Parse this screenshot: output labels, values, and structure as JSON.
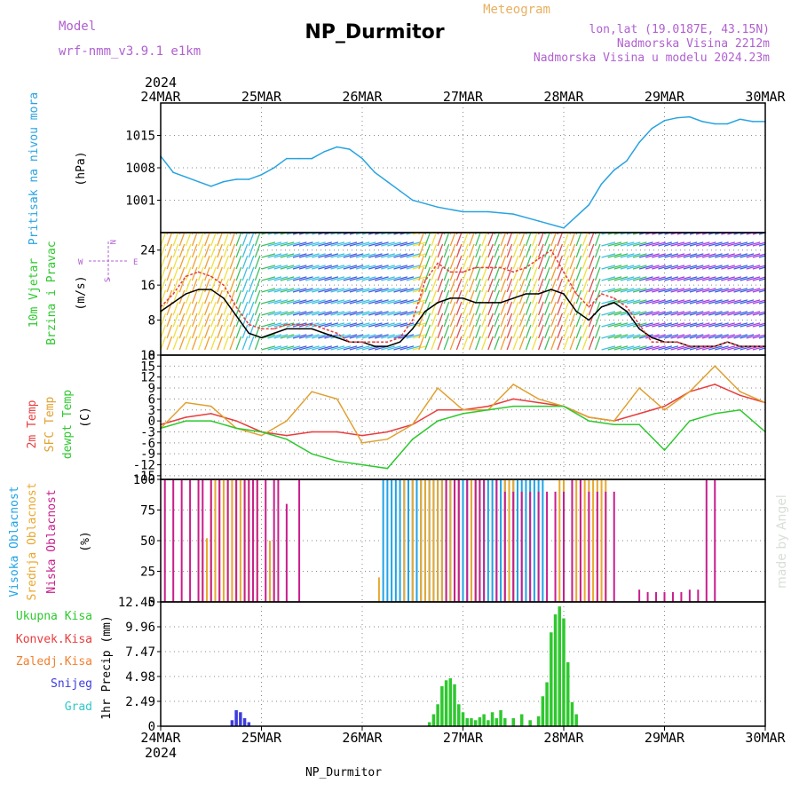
{
  "header": {
    "model_label": "Model",
    "model_name": "wrf-nmm_v3.9.1  e1km",
    "title": "NP_Durmitor",
    "meteogram_label": "Meteogram",
    "location_line1": "lon,lat (19.0187E, 43.15N)",
    "location_line2": "Nadmorska Visina 2212m",
    "location_line3": "Nadmorska Visina u modelu 2024.23m"
  },
  "time_axis": {
    "year": "2024",
    "labels": [
      "24MAR",
      "25MAR",
      "26MAR",
      "27MAR",
      "28MAR",
      "29MAR",
      "30MAR"
    ]
  },
  "footer_label": "NP_Durmitor",
  "watermark": "made by Angel",
  "colors": {
    "pressure": "#29a3e0",
    "wind_speed": "#000000",
    "temp2m": "#e83c3c",
    "sfc_temp": "#e0a030",
    "dewpt": "#2ec82e",
    "high_cloud": "#1fa2e6",
    "mid_cloud": "#e8a830",
    "low_cloud": "#c81e8c",
    "total_precip": "#2ec82e",
    "conv_precip": "#e83c3c",
    "frozen_precip": "#f08030",
    "snow": "#3c3cdc",
    "hail": "#30c8c8"
  },
  "chart_data": [
    {
      "type": "line",
      "panel": "pressure",
      "ylabel_main": "Pritisak na nivou mora",
      "ylabel_unit": "(hPa)",
      "ylim": [
        994,
        1022
      ],
      "yticks": [
        1001,
        1008,
        1015
      ],
      "xlim": [
        0,
        144
      ],
      "series": [
        {
          "x": [
            0,
            3,
            6,
            9,
            12,
            15,
            18,
            21,
            24,
            27,
            30,
            33,
            36,
            39,
            42,
            45,
            48,
            51,
            54,
            57,
            60,
            66,
            72,
            78,
            84,
            90,
            96,
            102,
            105,
            108,
            111,
            114,
            117,
            120,
            123,
            126,
            129,
            132,
            135,
            138,
            141,
            144
          ],
          "values": [
            1010.5,
            1007,
            1006,
            1005,
            1004,
            1005,
            1005.5,
            1005.5,
            1006.5,
            1008,
            1010,
            1010,
            1010,
            1011.5,
            1012.5,
            1012,
            1010,
            1007,
            1005,
            1003,
            1001,
            999.5,
            998.5,
            998.5,
            998,
            996.5,
            995,
            1000,
            1004.5,
            1007.5,
            1009.5,
            1013.5,
            1016.5,
            1018.2,
            1018.8,
            1019,
            1018,
            1017.5,
            1017.5,
            1018.5,
            1018,
            1018
          ]
        }
      ]
    },
    {
      "type": "line",
      "panel": "wind",
      "ylabel_main": "10m Vjetar",
      "ylabel_sub": "Brzina i Pravac",
      "ylabel_unit": "(m/s)",
      "compass": [
        "N",
        "S",
        "W",
        "E"
      ],
      "ylim": [
        0,
        28
      ],
      "yticks": [
        0,
        8,
        16,
        24
      ],
      "xlim": [
        0,
        144
      ],
      "series": [
        {
          "name": "speed",
          "x": [
            0,
            3,
            6,
            9,
            12,
            15,
            18,
            21,
            24,
            27,
            30,
            33,
            36,
            39,
            42,
            45,
            48,
            51,
            54,
            57,
            60,
            63,
            66,
            69,
            72,
            75,
            78,
            81,
            84,
            87,
            90,
            93,
            96,
            99,
            102,
            105,
            108,
            111,
            114,
            117,
            120,
            123,
            126,
            129,
            132,
            135,
            138,
            141,
            144
          ],
          "values": [
            10,
            12,
            14,
            15,
            15,
            13,
            9,
            5,
            4,
            5,
            6,
            6,
            6,
            5,
            4,
            3,
            3,
            2,
            2,
            3,
            6,
            10,
            12,
            13,
            13,
            12,
            12,
            12,
            13,
            14,
            14,
            15,
            14,
            10,
            8,
            11,
            12,
            10,
            6,
            4,
            3,
            3,
            2,
            2,
            2,
            3,
            2,
            2,
            2
          ]
        },
        {
          "name": "gust",
          "x": [
            0,
            3,
            6,
            9,
            12,
            15,
            18,
            21,
            24,
            27,
            30,
            33,
            36,
            39,
            42,
            45,
            48,
            51,
            54,
            57,
            60,
            63,
            66,
            69,
            72,
            75,
            78,
            81,
            84,
            87,
            90,
            93,
            96,
            99,
            102,
            105,
            108,
            111,
            114,
            117,
            120,
            123,
            126,
            129,
            132,
            135,
            138,
            141,
            144
          ],
          "values": [
            11,
            14,
            18,
            19,
            18,
            16,
            11,
            7,
            6,
            6,
            7,
            7,
            7,
            6,
            5,
            3,
            3,
            3,
            3,
            4,
            8,
            17,
            21,
            19,
            19,
            20,
            20,
            20,
            19,
            20,
            22,
            24,
            19,
            14,
            11,
            14,
            13,
            11,
            7,
            3,
            3,
            3,
            2,
            2,
            2,
            3,
            2,
            2,
            2
          ]
        }
      ]
    },
    {
      "type": "line",
      "panel": "temperature",
      "ylabel": "2m Temp",
      "ylabel2": "SFC Temp",
      "ylabel3": "dewpt Temp",
      "ylabel_unit": "(C)",
      "ylim": [
        -16,
        18
      ],
      "yticks": [
        -15,
        -12,
        -9,
        -6,
        -3,
        0,
        3,
        6,
        9,
        12,
        15,
        18
      ],
      "ytick_labels": [
        "-15",
        "-12",
        "-9",
        "-6",
        "-3",
        "0",
        "3",
        "6",
        "9",
        "12",
        "15",
        "18"
      ],
      "xlim": [
        0,
        144
      ],
      "series": [
        {
          "name": "2m Temp",
          "x": [
            0,
            6,
            12,
            18,
            24,
            30,
            36,
            42,
            48,
            54,
            60,
            66,
            72,
            78,
            84,
            90,
            96,
            102,
            108,
            114,
            120,
            126,
            132,
            138,
            144
          ],
          "values": [
            -1,
            1,
            2,
            0,
            -3,
            -4,
            -3,
            -3,
            -4,
            -3,
            -1,
            3,
            3,
            4,
            6,
            5,
            4,
            1,
            0,
            2,
            4,
            8,
            10,
            7,
            5
          ]
        },
        {
          "name": "SFC Temp",
          "x": [
            0,
            6,
            12,
            18,
            24,
            30,
            36,
            42,
            48,
            54,
            60,
            66,
            72,
            78,
            84,
            90,
            96,
            102,
            108,
            114,
            120,
            126,
            132,
            138,
            144
          ],
          "values": [
            -2,
            5,
            4,
            -2,
            -4,
            0,
            8,
            6,
            -6,
            -5,
            -1,
            9,
            3,
            3,
            10,
            6,
            4,
            1,
            0,
            9,
            3,
            8,
            15,
            8,
            5
          ]
        },
        {
          "name": "dewpt Temp",
          "x": [
            0,
            6,
            12,
            18,
            24,
            30,
            36,
            42,
            48,
            54,
            60,
            66,
            72,
            78,
            84,
            90,
            96,
            102,
            108,
            114,
            120,
            126,
            132,
            138,
            144
          ],
          "values": [
            -2,
            0,
            0,
            -2,
            -3,
            -5,
            -9,
            -11,
            -12,
            -13,
            -5,
            0,
            2,
            3,
            4,
            4,
            4,
            0,
            -1,
            -1,
            -8,
            0,
            2,
            3,
            -3
          ]
        }
      ]
    },
    {
      "type": "bar",
      "panel": "cloud",
      "ylabel": "Visoka Oblacnost",
      "ylabel2": "Srednja Oblacnost",
      "ylabel3": "Niska Oblacnost",
      "ylabel_unit": "(%)",
      "ylim": [
        0,
        100
      ],
      "yticks": [
        0,
        25,
        50,
        75,
        100
      ],
      "xlim": [
        0,
        144
      ],
      "series": [
        {
          "name": "Visoka Oblacnost",
          "x": [
            53,
            54,
            55,
            56,
            57,
            58,
            59,
            60,
            61,
            62,
            63,
            64,
            65,
            66,
            67,
            68,
            69,
            70,
            71,
            72,
            73,
            74,
            75,
            76,
            77,
            78,
            79,
            80,
            81,
            82,
            83,
            84,
            85,
            86,
            87,
            88,
            89,
            90,
            91
          ],
          "values": [
            100,
            100,
            100,
            100,
            100,
            100,
            100,
            100,
            100,
            100,
            100,
            100,
            100,
            100,
            100,
            100,
            100,
            100,
            100,
            100,
            100,
            100,
            100,
            100,
            100,
            100,
            100,
            100,
            100,
            100,
            100,
            100,
            100,
            100,
            100,
            100,
            100,
            100,
            100
          ]
        },
        {
          "name": "Srednja Oblacnost",
          "x": [
            10,
            11,
            12,
            13,
            14,
            15,
            16,
            17,
            18,
            19,
            20,
            21,
            22,
            23,
            26,
            27,
            52,
            58,
            60,
            62,
            63,
            64,
            65,
            66,
            67,
            68,
            69,
            70,
            71,
            74,
            75,
            76,
            82,
            83,
            84,
            95,
            96,
            98,
            99,
            100,
            101,
            102,
            103,
            104,
            105,
            106
          ],
          "values": [
            52,
            52,
            100,
            100,
            100,
            100,
            100,
            100,
            100,
            100,
            100,
            100,
            100,
            100,
            50,
            50,
            20,
            100,
            100,
            100,
            100,
            100,
            100,
            100,
            100,
            100,
            100,
            100,
            100,
            100,
            100,
            100,
            100,
            100,
            100,
            100,
            100,
            100,
            100,
            100,
            100,
            100,
            100,
            100,
            100,
            100
          ]
        },
        {
          "name": "Niska Oblacnost",
          "x": [
            1,
            3,
            5,
            7,
            9,
            10,
            12,
            14,
            16,
            18,
            20,
            21,
            22,
            23,
            25,
            27,
            28,
            30,
            33,
            68,
            70,
            71,
            73,
            75,
            76,
            77,
            80,
            82,
            84,
            86,
            88,
            90,
            92,
            94,
            96,
            98,
            100,
            102,
            104,
            106,
            108,
            114,
            116,
            118,
            120,
            122,
            124,
            126,
            128,
            130,
            132
          ],
          "values": [
            100,
            100,
            100,
            100,
            100,
            100,
            100,
            100,
            100,
            100,
            100,
            100,
            100,
            100,
            100,
            100,
            100,
            80,
            100,
            100,
            100,
            100,
            100,
            100,
            100,
            100,
            100,
            90,
            90,
            90,
            90,
            90,
            90,
            90,
            90,
            100,
            100,
            90,
            90,
            90,
            90,
            10,
            8,
            8,
            8,
            8,
            8,
            10,
            10,
            100,
            100
          ]
        }
      ]
    },
    {
      "type": "bar",
      "panel": "precipitation",
      "ylabel": "1hr Precip (mm)",
      "legend": [
        "Ukupna Kisa",
        "Konvek.Kisa",
        "Zaledj.Kisa",
        "Snijeg",
        "Grad"
      ],
      "ylim": [
        0,
        12.45
      ],
      "yticks": [
        0,
        2.49,
        4.98,
        7.47,
        9.96,
        12.45
      ],
      "ytick_labels": [
        "0",
        "2.49",
        "4.98",
        "7.47",
        "9.96",
        "12.45"
      ],
      "xlim": [
        0,
        144
      ],
      "series": [
        {
          "name": "Ukupna Kisa",
          "x": [
            64,
            65,
            66,
            67,
            68,
            69,
            70,
            71,
            72,
            73,
            74,
            75,
            76,
            77,
            78,
            79,
            80,
            81,
            82,
            84,
            86,
            88,
            90,
            91,
            92,
            93,
            94,
            95,
            96,
            97,
            98,
            99
          ],
          "values": [
            0.4,
            1.2,
            2.2,
            4.0,
            4.6,
            4.8,
            4.2,
            2.2,
            1.4,
            0.8,
            0.8,
            0.6,
            0.9,
            1.2,
            0.6,
            1.4,
            0.8,
            1.6,
            0.8,
            0.8,
            1.2,
            0.6,
            1.0,
            3.0,
            4.4,
            9.4,
            11.2,
            12.0,
            10.8,
            6.4,
            2.4,
            1.2
          ]
        },
        {
          "name": "Snijeg",
          "x": [
            17,
            18,
            19,
            20,
            21
          ],
          "values": [
            0.6,
            1.6,
            1.4,
            0.8,
            0.4
          ]
        }
      ]
    }
  ]
}
